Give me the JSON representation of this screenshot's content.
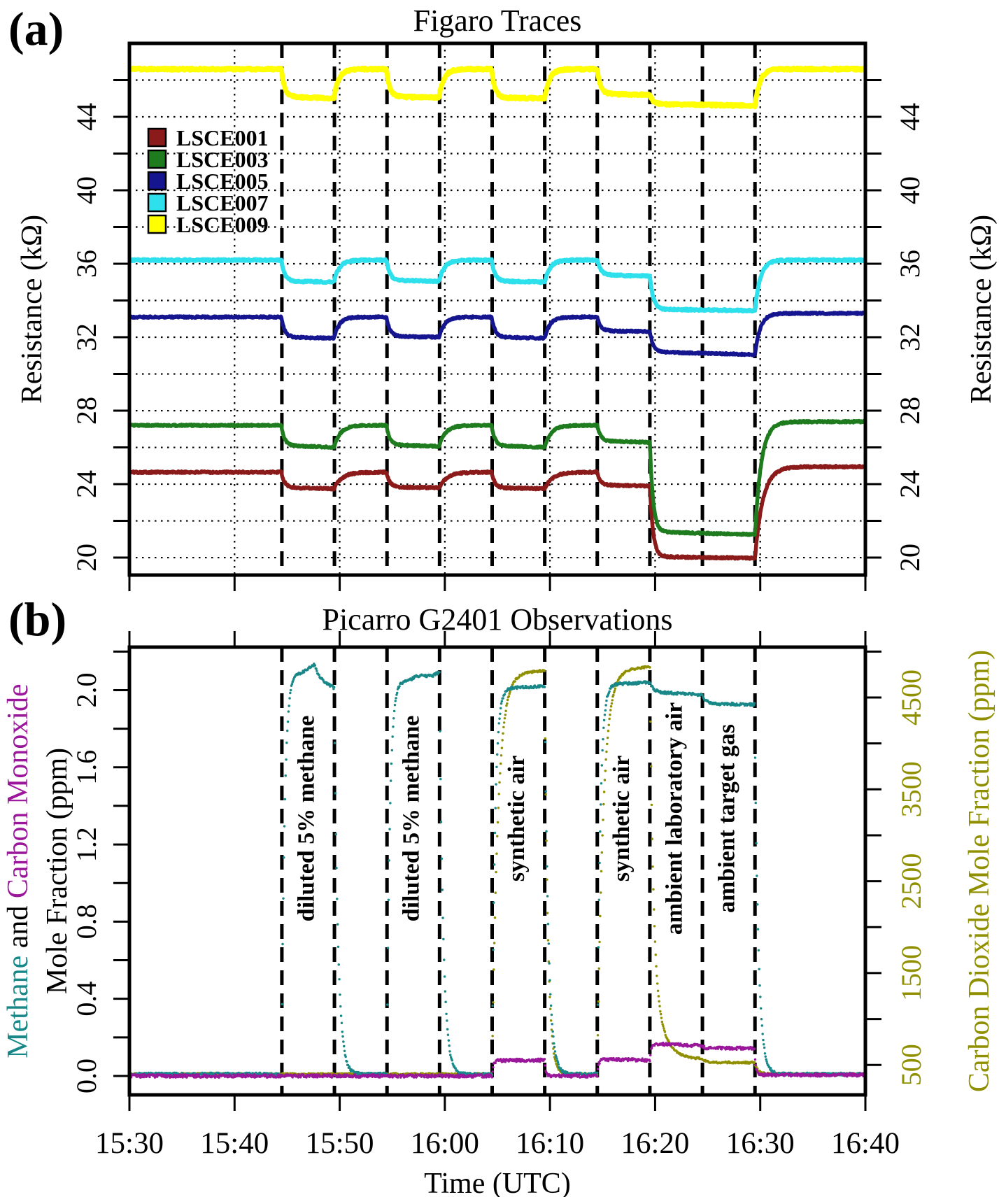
{
  "figure": {
    "panel_a": {
      "tag": "(a)",
      "title": "Figaro Traces",
      "ylabel_left": "Resistance (kΩ)",
      "ylabel_right": "Resistance (kΩ)"
    },
    "panel_b": {
      "tag": "(b)",
      "title": "Picarro G2401 Observations",
      "ylabel_left_line1": {
        "part1": "Methane",
        "part2": " and ",
        "part3": "Carbon Monoxide"
      },
      "ylabel_left_line2": "Mole Fraction (ppm)",
      "ylabel_right": "Carbon Dioxide Mole Fraction (ppm)",
      "xlabel": "Time (UTC)"
    },
    "colors": {
      "methane": "#178787",
      "carbon_monoxide": "#9A169A",
      "carbon_dioxide": "#8F8F00",
      "lsce001": "#8B1A1A",
      "lsce003": "#1E7B1E",
      "lsce005": "#15158F",
      "lsce007": "#2EDFEC",
      "lsce009": "#FFFF00",
      "axis": "#000000"
    }
  },
  "chart_data": [
    {
      "type": "line",
      "panel": "a",
      "title": "Figaro Traces",
      "ylabel": "Resistance (kΩ)",
      "ylabel_right": "Resistance (kΩ)",
      "ylim": [
        19.05,
        48.0
      ],
      "grid_horizontal_kohm": [
        20,
        22,
        24,
        26,
        28,
        30,
        32,
        34,
        36,
        38,
        40,
        42,
        44,
        46
      ],
      "yticks": [
        {
          "v": 20,
          "label": "20"
        },
        {
          "v": 22,
          "label": ""
        },
        {
          "v": 24,
          "label": "24"
        },
        {
          "v": 26,
          "label": ""
        },
        {
          "v": 28,
          "label": "28"
        },
        {
          "v": 30,
          "label": ""
        },
        {
          "v": 32,
          "label": "32"
        },
        {
          "v": 34,
          "label": ""
        },
        {
          "v": 36,
          "label": "36"
        },
        {
          "v": 38,
          "label": ""
        },
        {
          "v": 40,
          "label": "40"
        },
        {
          "v": 42,
          "label": ""
        },
        {
          "v": 44,
          "label": "44"
        },
        {
          "v": 46,
          "label": ""
        }
      ],
      "xticks": [
        {
          "min": 0,
          "label": "15:30"
        },
        {
          "min": 10,
          "label": "15:40"
        },
        {
          "min": 20,
          "label": "15:50"
        },
        {
          "min": 30,
          "label": "16:00"
        },
        {
          "min": 40,
          "label": "16:10"
        },
        {
          "min": 50,
          "label": "16:20"
        },
        {
          "min": 60,
          "label": "16:30"
        },
        {
          "min": 70,
          "label": "16:40"
        }
      ],
      "event_minutes": [
        14.5,
        19.5,
        24.5,
        29.5,
        34.5,
        39.5,
        44.5,
        49.5,
        54.5,
        59.5
      ],
      "legend": [
        {
          "label": "LSCE001",
          "color": "#8B1A1A"
        },
        {
          "label": "LSCE003",
          "color": "#1E7B1E"
        },
        {
          "label": "LSCE005",
          "color": "#15158F"
        },
        {
          "label": "LSCE007",
          "color": "#2EDFEC"
        },
        {
          "label": "LSCE009",
          "color": "#FFFF00"
        }
      ],
      "series": [
        {
          "name": "LSCE001",
          "color": "#8B1A1A",
          "unit": "kohm",
          "baseline": 24.65,
          "post": 24.95,
          "tau_fall": 0.3,
          "tau_rise": 0.75,
          "noise": 0.05,
          "width": 5.5,
          "segments": [
            {
              "t0": 14.5,
              "t1": 19.5,
              "v0": 23.82,
              "v1": 23.75
            },
            {
              "t0": 24.5,
              "t1": 29.5,
              "v0": 23.85,
              "v1": 23.8
            },
            {
              "t0": 34.5,
              "t1": 39.5,
              "v0": 23.8,
              "v1": 23.75
            },
            {
              "t0": 44.5,
              "t1": 49.5,
              "v0": 23.95,
              "v1": 23.9
            },
            {
              "t0": 49.5,
              "t1": 59.5,
              "v0": 20.05,
              "v1": 19.97
            }
          ]
        },
        {
          "name": "LSCE003",
          "color": "#1E7B1E",
          "unit": "kohm",
          "baseline": 27.2,
          "post": 27.4,
          "tau_fall": 0.3,
          "tau_rise": 0.6,
          "noise": 0.045,
          "width": 5.5,
          "segments": [
            {
              "t0": 14.5,
              "t1": 19.5,
              "v0": 26.1,
              "v1": 26.0
            },
            {
              "t0": 24.5,
              "t1": 29.5,
              "v0": 26.15,
              "v1": 26.05
            },
            {
              "t0": 34.5,
              "t1": 39.5,
              "v0": 26.1,
              "v1": 26.0
            },
            {
              "t0": 44.5,
              "t1": 49.5,
              "v0": 26.35,
              "v1": 26.28
            },
            {
              "t0": 49.5,
              "t1": 59.5,
              "v0": 21.4,
              "v1": 21.25
            }
          ]
        },
        {
          "name": "LSCE005",
          "color": "#15158F",
          "unit": "kohm",
          "baseline": 33.1,
          "post": 33.3,
          "tau_fall": 0.32,
          "tau_rise": 0.5,
          "noise": 0.045,
          "width": 5.5,
          "segments": [
            {
              "t0": 14.5,
              "t1": 19.5,
              "v0": 32.0,
              "v1": 31.95
            },
            {
              "t0": 24.5,
              "t1": 29.5,
              "v0": 32.05,
              "v1": 32.0
            },
            {
              "t0": 34.5,
              "t1": 39.5,
              "v0": 32.0,
              "v1": 31.95
            },
            {
              "t0": 44.5,
              "t1": 49.5,
              "v0": 32.35,
              "v1": 32.3
            },
            {
              "t0": 49.5,
              "t1": 59.5,
              "v0": 31.2,
              "v1": 31.05
            }
          ]
        },
        {
          "name": "LSCE007",
          "color": "#2EDFEC",
          "unit": "kohm",
          "baseline": 36.2,
          "post": 36.2,
          "tau_fall": 0.32,
          "tau_rise": 0.5,
          "noise": 0.05,
          "width": 6,
          "segments": [
            {
              "t0": 14.5,
              "t1": 19.5,
              "v0": 35.05,
              "v1": 35.0
            },
            {
              "t0": 24.5,
              "t1": 29.5,
              "v0": 35.1,
              "v1": 35.05
            },
            {
              "t0": 34.5,
              "t1": 39.5,
              "v0": 35.05,
              "v1": 35.0
            },
            {
              "t0": 44.5,
              "t1": 49.5,
              "v0": 35.4,
              "v1": 35.32
            },
            {
              "t0": 49.5,
              "t1": 59.5,
              "v0": 33.52,
              "v1": 33.45
            }
          ]
        },
        {
          "name": "LSCE009",
          "color": "#FFFF00",
          "unit": "kohm",
          "baseline": 46.6,
          "post": 46.6,
          "tau_fall": 0.3,
          "tau_rise": 0.45,
          "noise": 0.06,
          "width": 7,
          "segments": [
            {
              "t0": 14.5,
              "t1": 19.5,
              "v0": 45.1,
              "v1": 45.0
            },
            {
              "t0": 24.5,
              "t1": 29.5,
              "v0": 45.1,
              "v1": 45.05
            },
            {
              "t0": 34.5,
              "t1": 39.5,
              "v0": 45.05,
              "v1": 45.0
            },
            {
              "t0": 44.5,
              "t1": 49.5,
              "v0": 45.25,
              "v1": 45.2
            },
            {
              "t0": 49.5,
              "t1": 59.5,
              "v0": 44.7,
              "v1": 44.6
            }
          ]
        }
      ]
    },
    {
      "type": "scatter",
      "panel": "b",
      "title": "Picarro G2401 Observations",
      "ylabel_left": "Methane and Carbon Monoxide Mole Fraction (ppm)",
      "ylabel_right": "Carbon Dioxide Mole Fraction (ppm)",
      "xlabel": "Time (UTC)",
      "ylim_left": [
        -0.098,
        2.223
      ],
      "right_axis_map": {
        "offset_ppm": 380,
        "ppm_per_unit": 2100
      },
      "yticks_left": [
        {
          "v": 0.0,
          "label": "0.0"
        },
        {
          "v": 0.2,
          "label": ""
        },
        {
          "v": 0.4,
          "label": "0.4"
        },
        {
          "v": 0.6,
          "label": ""
        },
        {
          "v": 0.8,
          "label": "0.8"
        },
        {
          "v": 1.0,
          "label": ""
        },
        {
          "v": 1.2,
          "label": "1.2"
        },
        {
          "v": 1.4,
          "label": ""
        },
        {
          "v": 1.6,
          "label": "1.6"
        },
        {
          "v": 1.8,
          "label": ""
        },
        {
          "v": 2.0,
          "label": "2.0"
        },
        {
          "v": 2.2,
          "label": ""
        }
      ],
      "yticks_right_ppm": [
        {
          "v": 500,
          "label": "500"
        },
        {
          "v": 1000,
          "label": ""
        },
        {
          "v": 1500,
          "label": "1500"
        },
        {
          "v": 2000,
          "label": ""
        },
        {
          "v": 2500,
          "label": "2500"
        },
        {
          "v": 3000,
          "label": ""
        },
        {
          "v": 3500,
          "label": "3500"
        },
        {
          "v": 4000,
          "label": ""
        },
        {
          "v": 4500,
          "label": "4500"
        },
        {
          "v": 5000,
          "label": ""
        }
      ],
      "xticks": [
        {
          "min": 0,
          "label": "15:30"
        },
        {
          "min": 10,
          "label": "15:40"
        },
        {
          "min": 20,
          "label": "15:50"
        },
        {
          "min": 30,
          "label": "16:00"
        },
        {
          "min": 40,
          "label": "16:10"
        },
        {
          "min": 50,
          "label": "16:20"
        },
        {
          "min": 60,
          "label": "16:30"
        },
        {
          "min": 70,
          "label": "16:40"
        }
      ],
      "event_minutes": [
        14.5,
        19.5,
        24.5,
        29.5,
        34.5,
        39.5,
        44.5,
        49.5,
        54.5,
        59.5
      ],
      "annotations": [
        {
          "label": "diluted 5% methane",
          "center_min": 17
        },
        {
          "label": "diluted 5% methane",
          "center_min": 27
        },
        {
          "label": "synthetic air",
          "center_min": 37
        },
        {
          "label": "synthetic air",
          "center_min": 47
        },
        {
          "label": "ambient laboratory air",
          "center_min": 52
        },
        {
          "label": "ambient target gas",
          "center_min": 57
        }
      ],
      "series": [
        {
          "name": "CO2",
          "color": "#8F8F00",
          "unit": "ppm",
          "baseline": 400,
          "post": 400,
          "tau_fall": 0.3,
          "tau_rise": 0.55,
          "noise": 11,
          "segments": [
            {
              "t0": 34.5,
              "t1": 39.5,
              "v0": 4750,
              "v1": 4800
            },
            {
              "t0": 44.5,
              "t1": 49.5,
              "v0": 4790,
              "v1": 4840
            },
            {
              "t0": 49.5,
              "t1": 54.5,
              "v0": 1350,
              "v1": 560,
              "decay": 1.0
            },
            {
              "t0": 54.5,
              "t1": 59.5,
              "v0": 530,
              "v1": 525
            }
          ]
        },
        {
          "name": "CH4",
          "color": "#178787",
          "unit": "ppm_left",
          "baseline": 0.01,
          "post": 0.01,
          "tau_fall": 0.35,
          "tau_rise": 0.28,
          "noise": 0.007,
          "segments": [
            {
              "t0": 14.5,
              "t1": 17.6,
              "v0": 2.06,
              "v1": 2.13,
              "wiggle": 0.012
            },
            {
              "t0": 17.6,
              "t1": 19.5,
              "v0": 2.06,
              "v1": 2.0
            },
            {
              "t0": 24.5,
              "t1": 29.5,
              "v0": 2.03,
              "v1": 2.1,
              "wiggle": 0.008
            },
            {
              "t0": 34.5,
              "t1": 39.5,
              "v0": 2.01,
              "v1": 2.02
            },
            {
              "t0": 44.5,
              "t1": 49.5,
              "v0": 2.03,
              "v1": 2.04
            },
            {
              "t0": 49.5,
              "t1": 54.5,
              "v0": 1.99,
              "v1": 1.975
            },
            {
              "t0": 54.5,
              "t1": 59.5,
              "v0": 1.93,
              "v1": 1.925
            }
          ]
        },
        {
          "name": "CO",
          "color": "#9A169A",
          "unit": "ppm_left",
          "baseline": 0.0,
          "post": 0.005,
          "tau_fall": 0.12,
          "tau_rise": 0.12,
          "noise": 0.008,
          "segments": [
            {
              "t0": 34.5,
              "t1": 39.5,
              "v0": 0.08,
              "v1": 0.082
            },
            {
              "t0": 44.5,
              "t1": 49.5,
              "v0": 0.086,
              "v1": 0.082
            },
            {
              "t0": 49.5,
              "t1": 54.5,
              "v0": 0.168,
              "v1": 0.156
            },
            {
              "t0": 54.5,
              "t1": 59.5,
              "v0": 0.146,
              "v1": 0.143
            }
          ]
        }
      ]
    }
  ]
}
